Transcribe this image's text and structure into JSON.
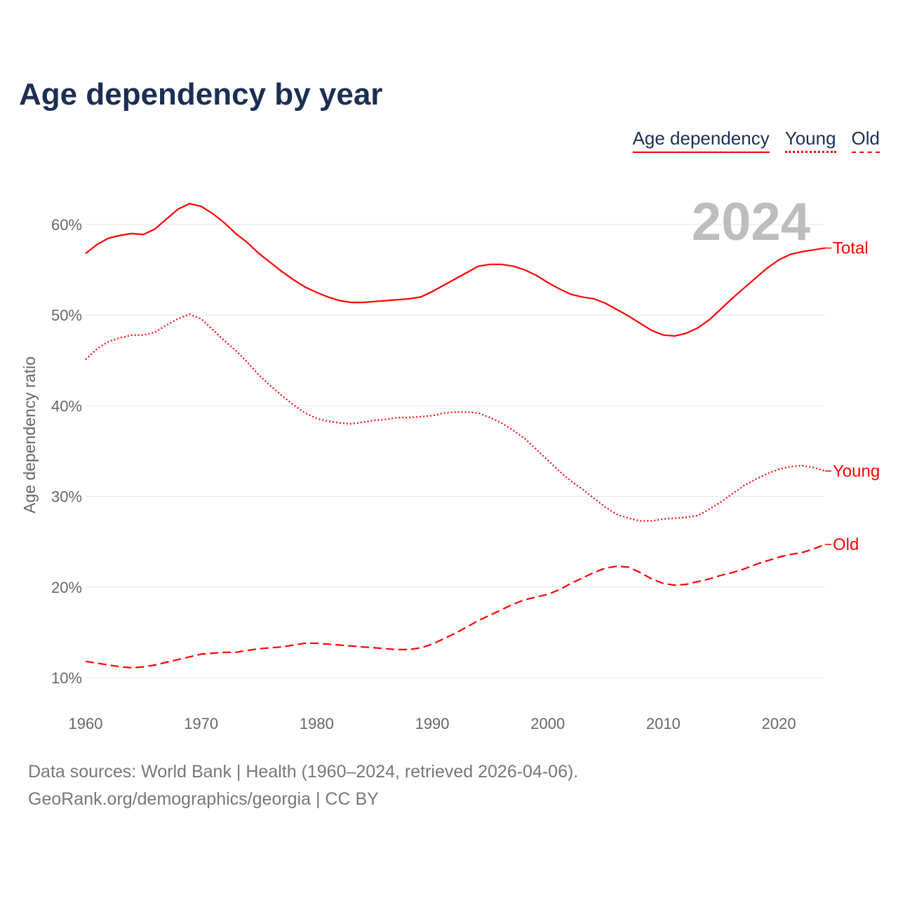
{
  "chart_data": {
    "type": "line",
    "title": "Age dependency by year",
    "ylabel": "Age dependency ratio",
    "xlabel": "",
    "year_label": "2024",
    "xlim": [
      1960,
      2024
    ],
    "ylim": [
      10,
      60
    ],
    "x_ticks": [
      "1960",
      "1970",
      "1980",
      "1990",
      "2000",
      "2010",
      "2020"
    ],
    "y_ticks": [
      "10%",
      "20%",
      "30%",
      "40%",
      "50%",
      "60%"
    ],
    "grid": true,
    "legend": [
      "Age dependency",
      "Young",
      "Old"
    ],
    "legend_placement": "top-right",
    "color": "#ff0000",
    "x": [
      1960,
      1961,
      1962,
      1963,
      1964,
      1965,
      1966,
      1967,
      1968,
      1969,
      1970,
      1971,
      1972,
      1973,
      1974,
      1975,
      1976,
      1977,
      1978,
      1979,
      1980,
      1981,
      1982,
      1983,
      1984,
      1985,
      1986,
      1987,
      1988,
      1989,
      1990,
      1991,
      1992,
      1993,
      1994,
      1995,
      1996,
      1997,
      1998,
      1999,
      2000,
      2001,
      2002,
      2003,
      2004,
      2005,
      2006,
      2007,
      2008,
      2009,
      2010,
      2011,
      2012,
      2013,
      2014,
      2015,
      2016,
      2017,
      2018,
      2019,
      2020,
      2021,
      2022,
      2023,
      2024
    ],
    "series": [
      {
        "name": "Total",
        "style": "solid",
        "values": [
          56.8,
          57.8,
          58.5,
          58.8,
          59.0,
          58.9,
          59.5,
          60.6,
          61.7,
          62.3,
          62.0,
          61.2,
          60.2,
          59.0,
          58.0,
          56.8,
          55.8,
          54.8,
          53.9,
          53.1,
          52.5,
          52.0,
          51.6,
          51.4,
          51.4,
          51.5,
          51.6,
          51.7,
          51.8,
          52.0,
          52.6,
          53.3,
          54.0,
          54.7,
          55.4,
          55.6,
          55.6,
          55.4,
          55.0,
          54.4,
          53.6,
          52.9,
          52.3,
          52.0,
          51.8,
          51.3,
          50.6,
          49.9,
          49.1,
          48.3,
          47.8,
          47.7,
          48.0,
          48.6,
          49.5,
          50.7,
          51.9,
          53.0,
          54.1,
          55.2,
          56.1,
          56.7,
          57.0,
          57.2,
          57.4
        ]
      },
      {
        "name": "Young",
        "style": "dotted",
        "values": [
          45.1,
          46.3,
          47.1,
          47.5,
          47.8,
          47.8,
          48.1,
          48.9,
          49.6,
          50.1,
          49.6,
          48.4,
          47.2,
          46.1,
          44.8,
          43.4,
          42.2,
          41.1,
          40.1,
          39.2,
          38.6,
          38.3,
          38.1,
          38.0,
          38.2,
          38.4,
          38.5,
          38.7,
          38.7,
          38.8,
          38.9,
          39.2,
          39.3,
          39.3,
          39.2,
          38.7,
          38.1,
          37.3,
          36.4,
          35.2,
          34.0,
          32.8,
          31.7,
          30.8,
          29.8,
          28.8,
          28.0,
          27.6,
          27.3,
          27.3,
          27.5,
          27.6,
          27.7,
          27.9,
          28.6,
          29.4,
          30.3,
          31.2,
          31.9,
          32.5,
          33.0,
          33.3,
          33.4,
          33.2,
          32.8
        ]
      },
      {
        "name": "Old",
        "style": "dashed",
        "values": [
          11.8,
          11.6,
          11.4,
          11.2,
          11.1,
          11.2,
          11.4,
          11.7,
          12.0,
          12.3,
          12.6,
          12.7,
          12.8,
          12.8,
          13.0,
          13.2,
          13.3,
          13.4,
          13.6,
          13.8,
          13.8,
          13.7,
          13.6,
          13.5,
          13.4,
          13.3,
          13.2,
          13.1,
          13.1,
          13.3,
          13.7,
          14.3,
          14.9,
          15.6,
          16.3,
          16.9,
          17.5,
          18.1,
          18.6,
          18.9,
          19.2,
          19.7,
          20.4,
          21.0,
          21.6,
          22.1,
          22.3,
          22.2,
          21.6,
          20.9,
          20.4,
          20.2,
          20.3,
          20.6,
          20.9,
          21.3,
          21.6,
          22.0,
          22.5,
          22.9,
          23.3,
          23.6,
          23.8,
          24.2,
          24.7
        ]
      }
    ]
  },
  "footer": {
    "line1": "Data sources: World Bank | Health (1960–2024, retrieved 2026-04-06).",
    "line2": "GeoRank.org/demographics/georgia | CC BY"
  }
}
